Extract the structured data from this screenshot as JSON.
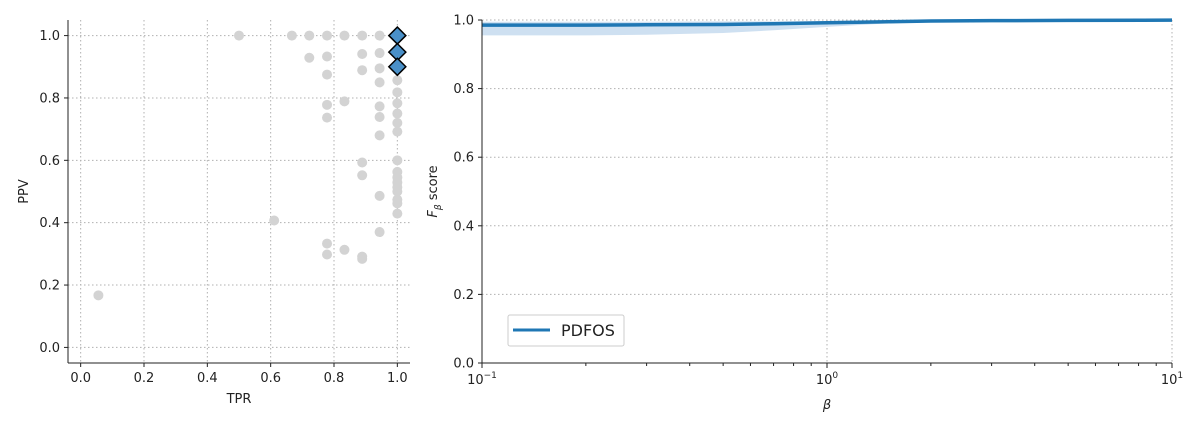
{
  "chart_data": [
    {
      "type": "scatter",
      "xlabel": "TPR",
      "ylabel": "PPV",
      "xlim": [
        -0.04,
        1.04
      ],
      "ylim": [
        -0.05,
        1.05
      ],
      "xticks": [
        "0.0",
        "0.2",
        "0.4",
        "0.6",
        "0.8",
        "1.0"
      ],
      "yticks": [
        "0.0",
        "0.2",
        "0.4",
        "0.6",
        "0.8",
        "1.0"
      ],
      "grid": true,
      "colors": {
        "candidates": "#d3d3d3",
        "selected_fill": "#4a90c8",
        "selected_edge": "#000000"
      },
      "series": [
        {
          "points": [
            [
              0.056,
              0.167
            ],
            [
              0.5,
              1.0
            ],
            [
              0.611,
              0.407
            ],
            [
              0.667,
              1.0
            ],
            [
              0.722,
              1.0
            ],
            [
              0.722,
              0.929
            ],
            [
              0.778,
              1.0
            ],
            [
              0.778,
              0.933
            ],
            [
              0.778,
              0.875
            ],
            [
              0.778,
              0.778
            ],
            [
              0.778,
              0.737
            ],
            [
              0.778,
              0.333
            ],
            [
              0.778,
              0.298
            ],
            [
              0.833,
              1.0
            ],
            [
              0.833,
              0.789
            ],
            [
              0.833,
              0.313
            ],
            [
              0.889,
              1.0
            ],
            [
              0.889,
              0.941
            ],
            [
              0.889,
              0.889
            ],
            [
              0.889,
              0.593
            ],
            [
              0.889,
              0.552
            ],
            [
              0.889,
              0.291
            ],
            [
              0.889,
              0.284
            ],
            [
              0.944,
              1.0
            ],
            [
              0.944,
              0.944
            ],
            [
              0.944,
              0.895
            ],
            [
              0.944,
              0.85
            ],
            [
              0.944,
              0.773
            ],
            [
              0.944,
              0.739
            ],
            [
              0.944,
              0.68
            ],
            [
              0.944,
              0.486
            ],
            [
              0.944,
              0.37
            ],
            [
              1.0,
              0.857
            ],
            [
              1.0,
              0.818
            ],
            [
              1.0,
              0.783
            ],
            [
              1.0,
              0.75
            ],
            [
              1.0,
              0.72
            ],
            [
              1.0,
              0.692
            ],
            [
              1.0,
              0.6
            ],
            [
              1.0,
              0.563
            ],
            [
              1.0,
              0.545
            ],
            [
              1.0,
              0.529
            ],
            [
              1.0,
              0.514
            ],
            [
              1.0,
              0.5
            ],
            [
              1.0,
              0.474
            ],
            [
              1.0,
              0.462
            ],
            [
              1.0,
              0.429
            ]
          ]
        },
        {
          "points": [
            [
              1.0,
              1.0
            ],
            [
              1.0,
              0.947
            ],
            [
              1.0,
              0.9
            ]
          ]
        }
      ]
    },
    {
      "type": "line",
      "xlabel": "β",
      "ylabel_main": "F",
      "ylabel_sub": "β",
      "ylabel_tail": " score",
      "xscale": "log",
      "xlim": [
        0.1,
        10
      ],
      "ylim": [
        0.0,
        1.0
      ],
      "xticks": [
        {
          "base": "10",
          "exp": "−1"
        },
        {
          "base": "10",
          "exp": "0"
        },
        {
          "base": "10",
          "exp": "1"
        }
      ],
      "yticks": [
        "0.0",
        "0.2",
        "0.4",
        "0.6",
        "0.8",
        "1.0"
      ],
      "grid": true,
      "legend_position": "lower-left",
      "colors": {
        "line": "#1f77b4",
        "band": "#c6dbef"
      },
      "series": [
        {
          "name": "PDFOS",
          "x": [
            0.1,
            0.2,
            0.3,
            0.5,
            0.7,
            1.0,
            1.5,
            2.0,
            3.0,
            5.0,
            10.0
          ],
          "y": [
            0.985,
            0.985,
            0.986,
            0.987,
            0.989,
            0.992,
            0.995,
            0.997,
            0.998,
            0.999,
            0.9995
          ],
          "lower": [
            0.955,
            0.955,
            0.957,
            0.962,
            0.97,
            0.98,
            0.99,
            0.994,
            0.996,
            0.998,
            0.999
          ],
          "upper": [
            0.995,
            0.995,
            0.995,
            0.996,
            0.996,
            0.997,
            0.998,
            0.999,
            0.999,
            1.0,
            1.0
          ]
        }
      ]
    }
  ]
}
